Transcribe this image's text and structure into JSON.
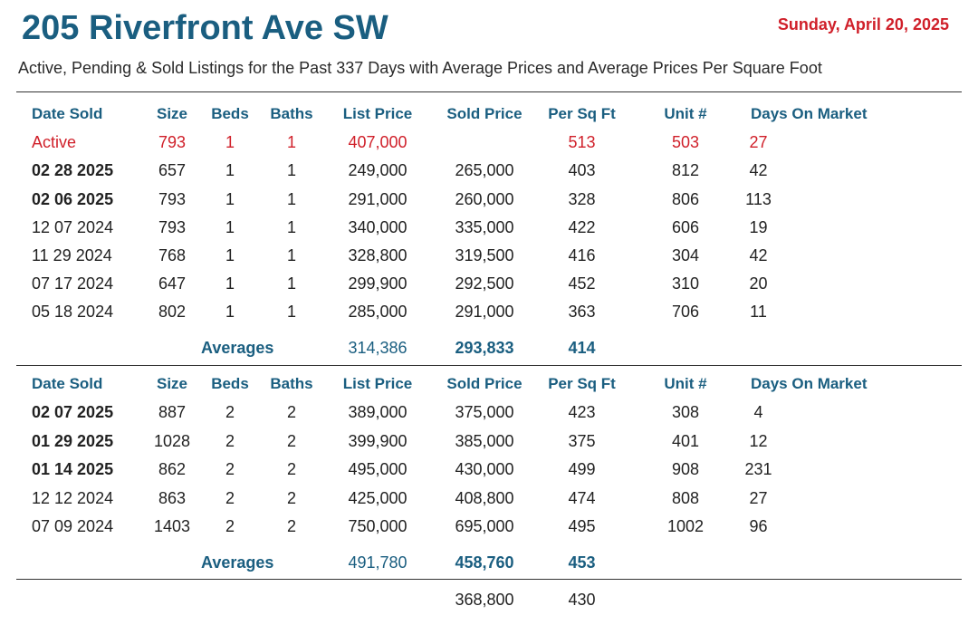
{
  "header": {
    "title": "205 Riverfront Ave SW",
    "date": "Sunday, April 20, 2025",
    "subtitle": "Active, Pending & Sold Listings for the Past 337 Days with Average Prices and Average Prices Per Square Foot"
  },
  "colors": {
    "accent": "#1a5e80",
    "active": "#d0202a",
    "text": "#222222"
  },
  "columns": {
    "date_sold": "Date Sold",
    "size": "Size",
    "beds": "Beds",
    "baths": "Baths",
    "list_price": "List Price",
    "sold_price": "Sold Price",
    "per_sq_ft": "Per Sq Ft",
    "unit": "Unit #",
    "days_on_market": "Days On Market"
  },
  "section1": {
    "rows": [
      {
        "date": "Active",
        "size": "793",
        "beds": "1",
        "baths": "1",
        "list": "407,000",
        "sold": "",
        "ppsf": "513",
        "unit": "503",
        "dom": "27"
      },
      {
        "date": "02 28 2025",
        "size": "657",
        "beds": "1",
        "baths": "1",
        "list": "249,000",
        "sold": "265,000",
        "ppsf": "403",
        "unit": "812",
        "dom": "42"
      },
      {
        "date": "02 06 2025",
        "size": "793",
        "beds": "1",
        "baths": "1",
        "list": "291,000",
        "sold": "260,000",
        "ppsf": "328",
        "unit": "806",
        "dom": "113"
      },
      {
        "date": "12 07 2024",
        "size": "793",
        "beds": "1",
        "baths": "1",
        "list": "340,000",
        "sold": "335,000",
        "ppsf": "422",
        "unit": "606",
        "dom": "19"
      },
      {
        "date": "11 29 2024",
        "size": "768",
        "beds": "1",
        "baths": "1",
        "list": "328,800",
        "sold": "319,500",
        "ppsf": "416",
        "unit": "304",
        "dom": "42"
      },
      {
        "date": "07 17 2024",
        "size": "647",
        "beds": "1",
        "baths": "1",
        "list": "299,900",
        "sold": "292,500",
        "ppsf": "452",
        "unit": "310",
        "dom": "20"
      },
      {
        "date": "05 18 2024",
        "size": "802",
        "beds": "1",
        "baths": "1",
        "list": "285,000",
        "sold": "291,000",
        "ppsf": "363",
        "unit": "706",
        "dom": "11"
      }
    ],
    "averages": {
      "label": "Averages",
      "list": "314,386",
      "sold": "293,833",
      "ppsf": "414"
    }
  },
  "section2": {
    "rows": [
      {
        "date": "02 07 2025",
        "size": "887",
        "beds": "2",
        "baths": "2",
        "list": "389,000",
        "sold": "375,000",
        "ppsf": "423",
        "unit": "308",
        "dom": "4"
      },
      {
        "date": "01 29 2025",
        "size": "1028",
        "beds": "2",
        "baths": "2",
        "list": "399,900",
        "sold": "385,000",
        "ppsf": "375",
        "unit": "401",
        "dom": "12"
      },
      {
        "date": "01 14 2025",
        "size": "862",
        "beds": "2",
        "baths": "2",
        "list": "495,000",
        "sold": "430,000",
        "ppsf": "499",
        "unit": "908",
        "dom": "231"
      },
      {
        "date": "12 12 2024",
        "size": "863",
        "beds": "2",
        "baths": "2",
        "list": "425,000",
        "sold": "408,800",
        "ppsf": "474",
        "unit": "808",
        "dom": "27"
      },
      {
        "date": "07 09 2024",
        "size": "1403",
        "beds": "2",
        "baths": "2",
        "list": "750,000",
        "sold": "695,000",
        "ppsf": "495",
        "unit": "1002",
        "dom": "96"
      }
    ],
    "averages": {
      "label": "Averages",
      "list": "491,780",
      "sold": "458,760",
      "ppsf": "453"
    }
  },
  "overall": {
    "sold": "368,800",
    "ppsf": "430"
  }
}
